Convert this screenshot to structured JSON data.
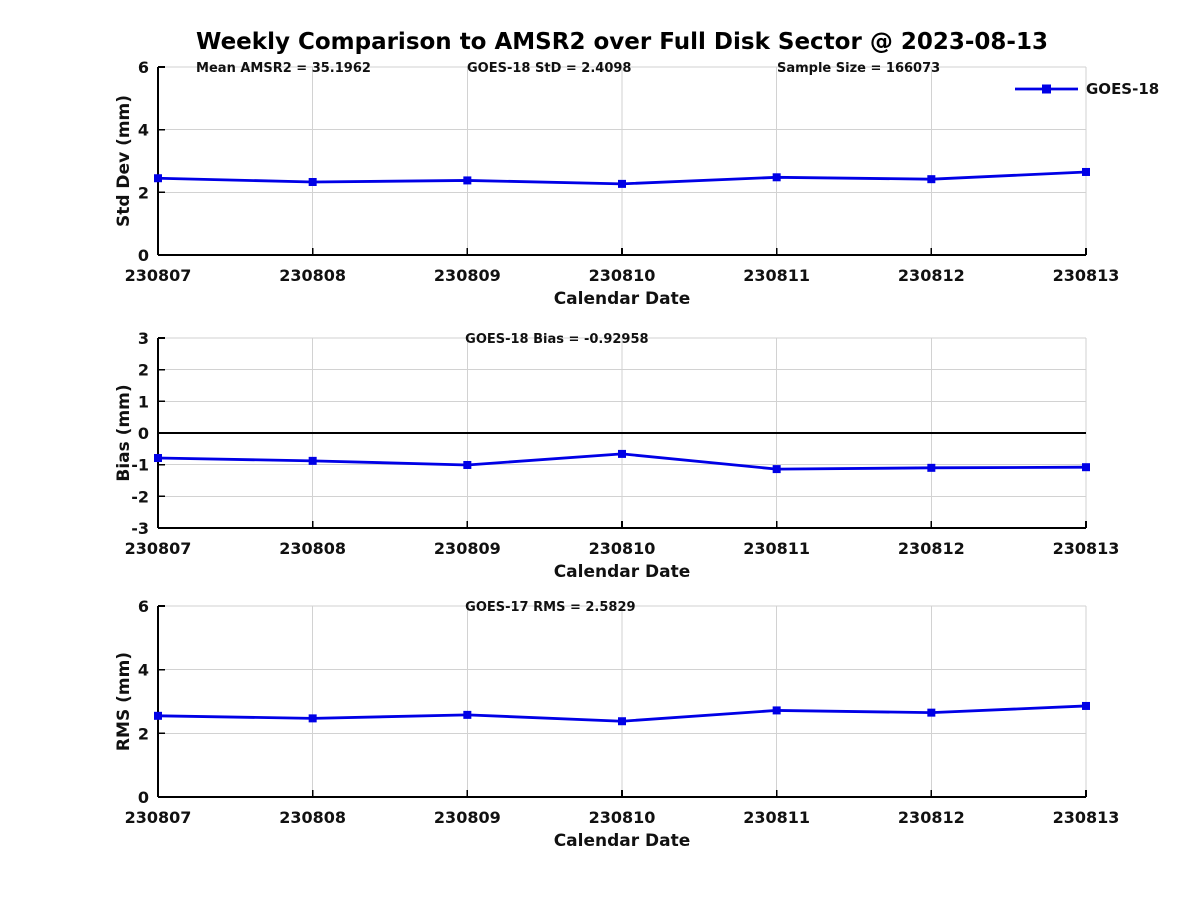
{
  "title": "Weekly Comparison to AMSR2 over Full Disk Sector @ 2023-08-13",
  "colors": {
    "line": "#0000E6",
    "marker": "#0000E6",
    "grid": "#D2D2D2",
    "axis": "#000000",
    "zero_line": "#000000",
    "text": "#111111"
  },
  "legend": {
    "label": "GOES-18",
    "position": "top-right"
  },
  "chart_data": [
    {
      "type": "line",
      "title": "",
      "categories": [
        "230807",
        "230808",
        "230809",
        "230810",
        "230811",
        "230812",
        "230813"
      ],
      "series": [
        {
          "name": "GOES-18",
          "values": [
            2.45,
            2.33,
            2.38,
            2.27,
            2.48,
            2.42,
            2.65
          ]
        }
      ],
      "xlabel": "Calendar Date",
      "ylabel": "Std Dev (mm)",
      "ylim": [
        0,
        6
      ],
      "yticks": [
        0,
        2,
        4,
        6
      ],
      "grid": true,
      "legend_visible": true,
      "annotations": [
        {
          "text": "Mean AMSR2 = 35.1962",
          "xfrac": 0.041
        },
        {
          "text": "GOES-18 StD = 2.4098",
          "xfrac": 0.333
        },
        {
          "text": "Sample Size = 166073",
          "xfrac": 0.667
        }
      ]
    },
    {
      "type": "line",
      "title": "",
      "categories": [
        "230807",
        "230808",
        "230809",
        "230810",
        "230811",
        "230812",
        "230813"
      ],
      "series": [
        {
          "name": "GOES-18",
          "values": [
            -0.79,
            -0.88,
            -1.01,
            -0.66,
            -1.14,
            -1.1,
            -1.08
          ]
        }
      ],
      "xlabel": "Calendar Date",
      "ylabel": "Bias (mm)",
      "ylim": [
        -3,
        3
      ],
      "yticks": [
        -3,
        -2,
        -1,
        0,
        1,
        2,
        3
      ],
      "grid": true,
      "zero_line": true,
      "legend_visible": false,
      "annotations": [
        {
          "text": "GOES-18 Bias  = -0.92958",
          "xfrac": 0.331
        }
      ]
    },
    {
      "type": "line",
      "title": "",
      "categories": [
        "230807",
        "230808",
        "230809",
        "230810",
        "230811",
        "230812",
        "230813"
      ],
      "series": [
        {
          "name": "GOES-18",
          "values": [
            2.55,
            2.47,
            2.58,
            2.38,
            2.72,
            2.65,
            2.86
          ]
        }
      ],
      "xlabel": "Calendar Date",
      "ylabel": "RMS (mm)",
      "ylim": [
        0,
        6
      ],
      "yticks": [
        0,
        2,
        4,
        6
      ],
      "grid": true,
      "legend_visible": false,
      "annotations": [
        {
          "text": "GOES-17 RMS = 2.5829",
          "xfrac": 0.331
        }
      ]
    }
  ]
}
